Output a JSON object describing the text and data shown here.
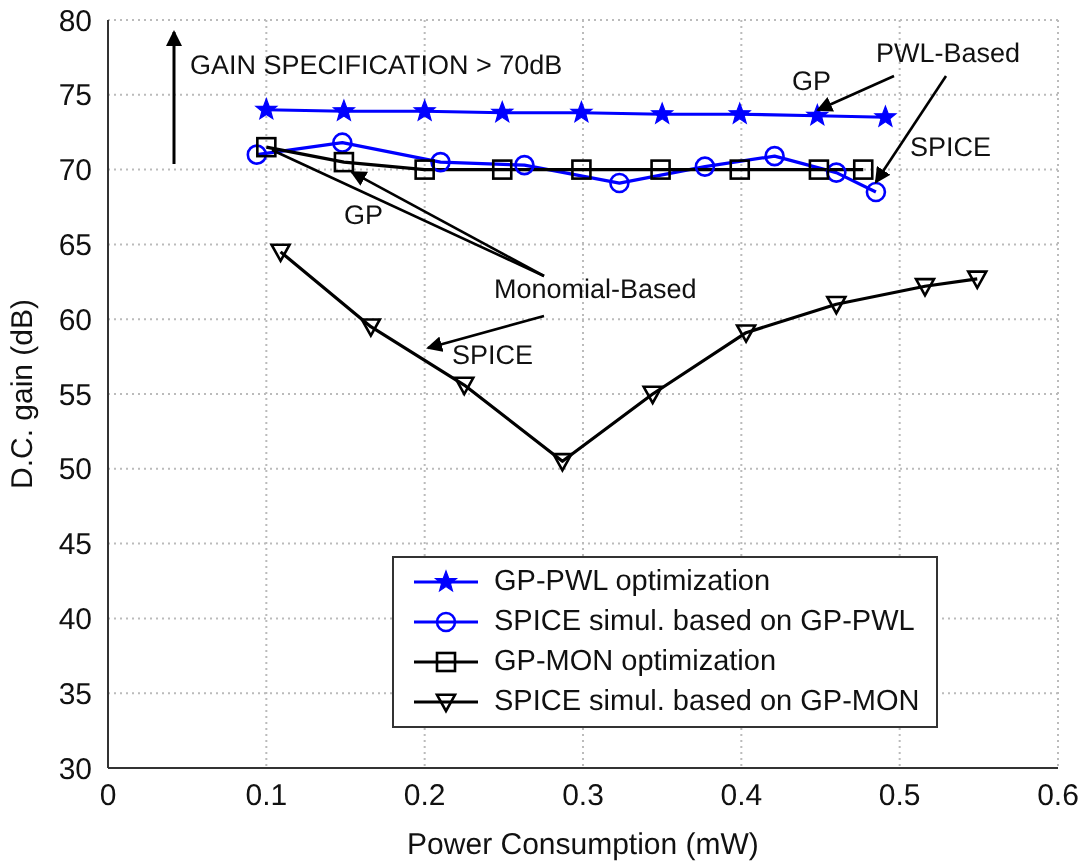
{
  "chart_data": {
    "type": "line",
    "xlabel": "Power Consumption (mW)",
    "ylabel": "D.C. gain (dB)",
    "xlim": [
      0,
      0.6
    ],
    "xticks": [
      0,
      0.1,
      0.2,
      0.3,
      0.4,
      0.5,
      0.6
    ],
    "ylim": [
      30,
      80
    ],
    "yticks": [
      30,
      35,
      40,
      45,
      50,
      55,
      60,
      65,
      70,
      75,
      80
    ],
    "grid": true,
    "legend": "bottom right",
    "line_style": "solid",
    "series": [
      {
        "name": "GP-PWL optimization",
        "color": "#0000ff",
        "marker": "star",
        "x": [
          0.1,
          0.149,
          0.2,
          0.249,
          0.299,
          0.35,
          0.399,
          0.448,
          0.491
        ],
        "values": [
          74,
          73.9,
          73.9,
          73.8,
          73.8,
          73.7,
          73.7,
          73.6,
          73.5
        ]
      },
      {
        "name": "SPICE simul. based on GP-PWL",
        "color": "#0000ff",
        "marker": "circle",
        "x": [
          0.094,
          0.148,
          0.21,
          0.263,
          0.323,
          0.377,
          0.421,
          0.46,
          0.485
        ],
        "values": [
          71,
          71.8,
          70.5,
          70.3,
          69.1,
          70.2,
          70.9,
          69.8,
          68.5
        ]
      },
      {
        "name": "GP-MON optimization",
        "color": "#000000",
        "marker": "square",
        "x": [
          0.1,
          0.149,
          0.2,
          0.249,
          0.299,
          0.349,
          0.399,
          0.449,
          0.477
        ],
        "values": [
          71.5,
          70.5,
          70,
          70,
          70,
          70,
          70,
          70,
          70
        ]
      },
      {
        "name": "SPICE simul. based on GP-MON",
        "color": "#000000",
        "marker": "triangle",
        "x": [
          0.109,
          0.166,
          0.225,
          0.287,
          0.344,
          0.403,
          0.46,
          0.516,
          0.549
        ],
        "values": [
          64.5,
          59.5,
          55.6,
          50.5,
          55,
          59.1,
          61,
          62.2,
          62.7
        ]
      }
    ],
    "annotations": [
      "GAIN SPECIFICATION > 70dB",
      {
        "text": "PWL-Based",
        "x": 0.485,
        "y": 68.5
      },
      "GP",
      "SPICE",
      "GP",
      {
        "text": "Monomial-Based",
        "x": 0.149,
        "y": 70.5
      },
      "SPICE"
    ]
  }
}
